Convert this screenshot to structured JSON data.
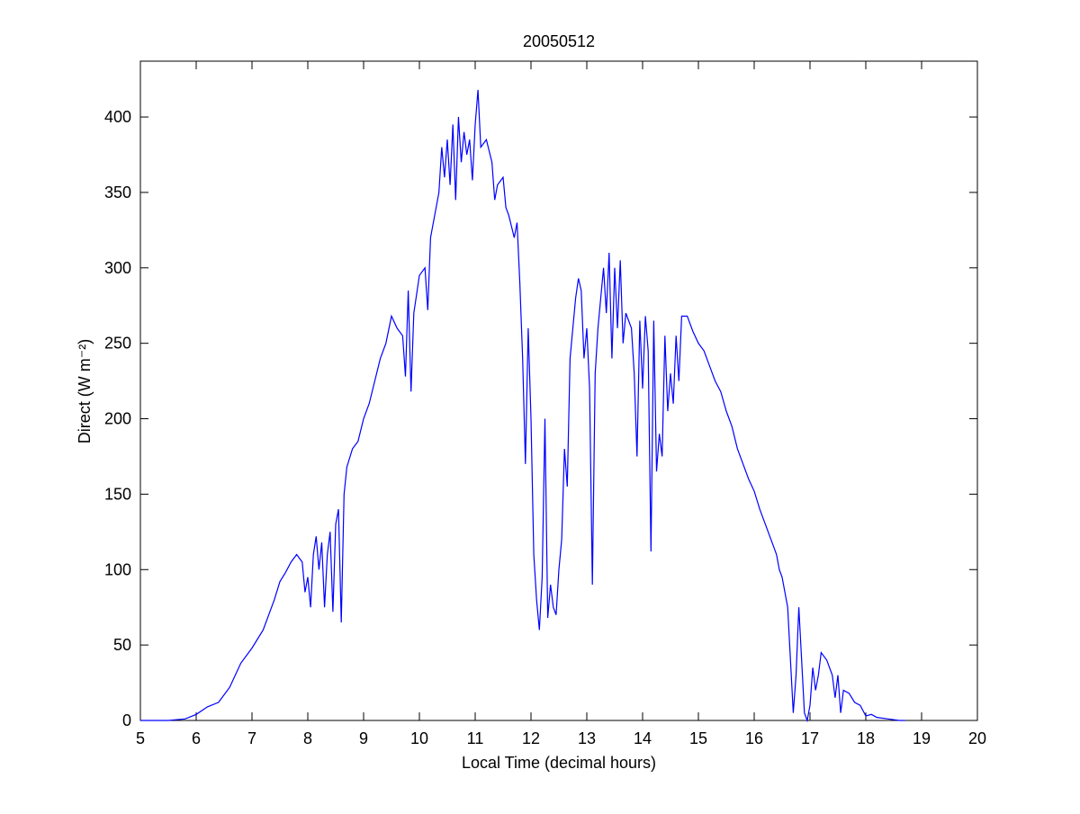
{
  "chart_data": {
    "type": "line",
    "title": "20050512",
    "x_label": "Local Time (decimal hours)",
    "y_label": "Direct (W m⁻²)",
    "xlim": [
      5,
      20
    ],
    "ylim": [
      0,
      437
    ],
    "xticks": [
      5,
      6,
      7,
      8,
      9,
      10,
      11,
      12,
      13,
      14,
      15,
      16,
      17,
      18,
      19,
      20
    ],
    "yticks": [
      0,
      50,
      100,
      150,
      200,
      250,
      300,
      350,
      400
    ],
    "grid": false,
    "series": [
      {
        "name": "Direct",
        "color": "#0000ff",
        "x": [
          5.0,
          5.5,
          5.8,
          6.0,
          6.2,
          6.4,
          6.6,
          6.8,
          7.0,
          7.2,
          7.4,
          7.5,
          7.6,
          7.7,
          7.8,
          7.9,
          7.95,
          8.0,
          8.05,
          8.1,
          8.15,
          8.2,
          8.25,
          8.3,
          8.35,
          8.4,
          8.45,
          8.5,
          8.55,
          8.6,
          8.65,
          8.7,
          8.8,
          8.9,
          9.0,
          9.1,
          9.2,
          9.3,
          9.4,
          9.5,
          9.6,
          9.7,
          9.75,
          9.8,
          9.85,
          9.9,
          10.0,
          10.1,
          10.15,
          10.2,
          10.3,
          10.35,
          10.4,
          10.45,
          10.5,
          10.55,
          10.6,
          10.65,
          10.7,
          10.75,
          10.8,
          10.85,
          10.9,
          10.95,
          11.0,
          11.05,
          11.1,
          11.2,
          11.3,
          11.35,
          11.4,
          11.5,
          11.55,
          11.6,
          11.7,
          11.75,
          11.8,
          11.85,
          11.9,
          11.95,
          12.0,
          12.05,
          12.1,
          12.15,
          12.2,
          12.25,
          12.3,
          12.35,
          12.4,
          12.45,
          12.5,
          12.55,
          12.6,
          12.65,
          12.7,
          12.8,
          12.85,
          12.9,
          12.95,
          13.0,
          13.05,
          13.1,
          13.15,
          13.2,
          13.3,
          13.35,
          13.4,
          13.45,
          13.5,
          13.55,
          13.6,
          13.65,
          13.7,
          13.8,
          13.85,
          13.9,
          13.95,
          14.0,
          14.05,
          14.1,
          14.15,
          14.2,
          14.25,
          14.3,
          14.35,
          14.4,
          14.45,
          14.5,
          14.55,
          14.6,
          14.65,
          14.7,
          14.8,
          14.9,
          15.0,
          15.1,
          15.2,
          15.3,
          15.4,
          15.5,
          15.6,
          15.7,
          15.8,
          15.9,
          16.0,
          16.1,
          16.2,
          16.3,
          16.4,
          16.45,
          16.5,
          16.6,
          16.65,
          16.7,
          16.75,
          16.8,
          16.85,
          16.9,
          16.95,
          17.0,
          17.05,
          17.1,
          17.15,
          17.2,
          17.3,
          17.4,
          17.45,
          17.5,
          17.55,
          17.6,
          17.7,
          17.8,
          17.9,
          18.0,
          18.1,
          18.2,
          18.4,
          18.6,
          18.7
        ],
        "values": [
          0,
          0,
          1,
          4,
          9,
          12,
          22,
          38,
          48,
          60,
          80,
          92,
          98,
          105,
          110,
          105,
          85,
          95,
          75,
          110,
          122,
          100,
          118,
          75,
          110,
          125,
          72,
          130,
          140,
          65,
          150,
          168,
          180,
          185,
          200,
          210,
          225,
          240,
          250,
          268,
          260,
          255,
          228,
          285,
          218,
          270,
          295,
          300,
          272,
          320,
          340,
          350,
          380,
          360,
          385,
          355,
          395,
          345,
          400,
          370,
          390,
          375,
          385,
          358,
          395,
          418,
          380,
          385,
          370,
          345,
          355,
          360,
          340,
          335,
          320,
          330,
          290,
          240,
          170,
          260,
          200,
          110,
          80,
          60,
          95,
          200,
          68,
          90,
          75,
          70,
          100,
          120,
          180,
          155,
          240,
          280,
          293,
          285,
          240,
          260,
          220,
          90,
          230,
          260,
          300,
          270,
          310,
          240,
          300,
          260,
          305,
          250,
          270,
          260,
          230,
          175,
          265,
          220,
          268,
          245,
          112,
          265,
          165,
          190,
          175,
          255,
          205,
          230,
          210,
          255,
          225,
          268,
          268,
          258,
          250,
          245,
          235,
          225,
          218,
          205,
          195,
          180,
          170,
          160,
          152,
          140,
          130,
          120,
          110,
          100,
          95,
          75,
          40,
          5,
          30,
          75,
          40,
          5,
          0,
          10,
          35,
          20,
          30,
          45,
          40,
          30,
          15,
          30,
          5,
          20,
          18,
          12,
          10,
          3,
          4,
          2,
          1,
          0,
          0
        ]
      }
    ]
  }
}
